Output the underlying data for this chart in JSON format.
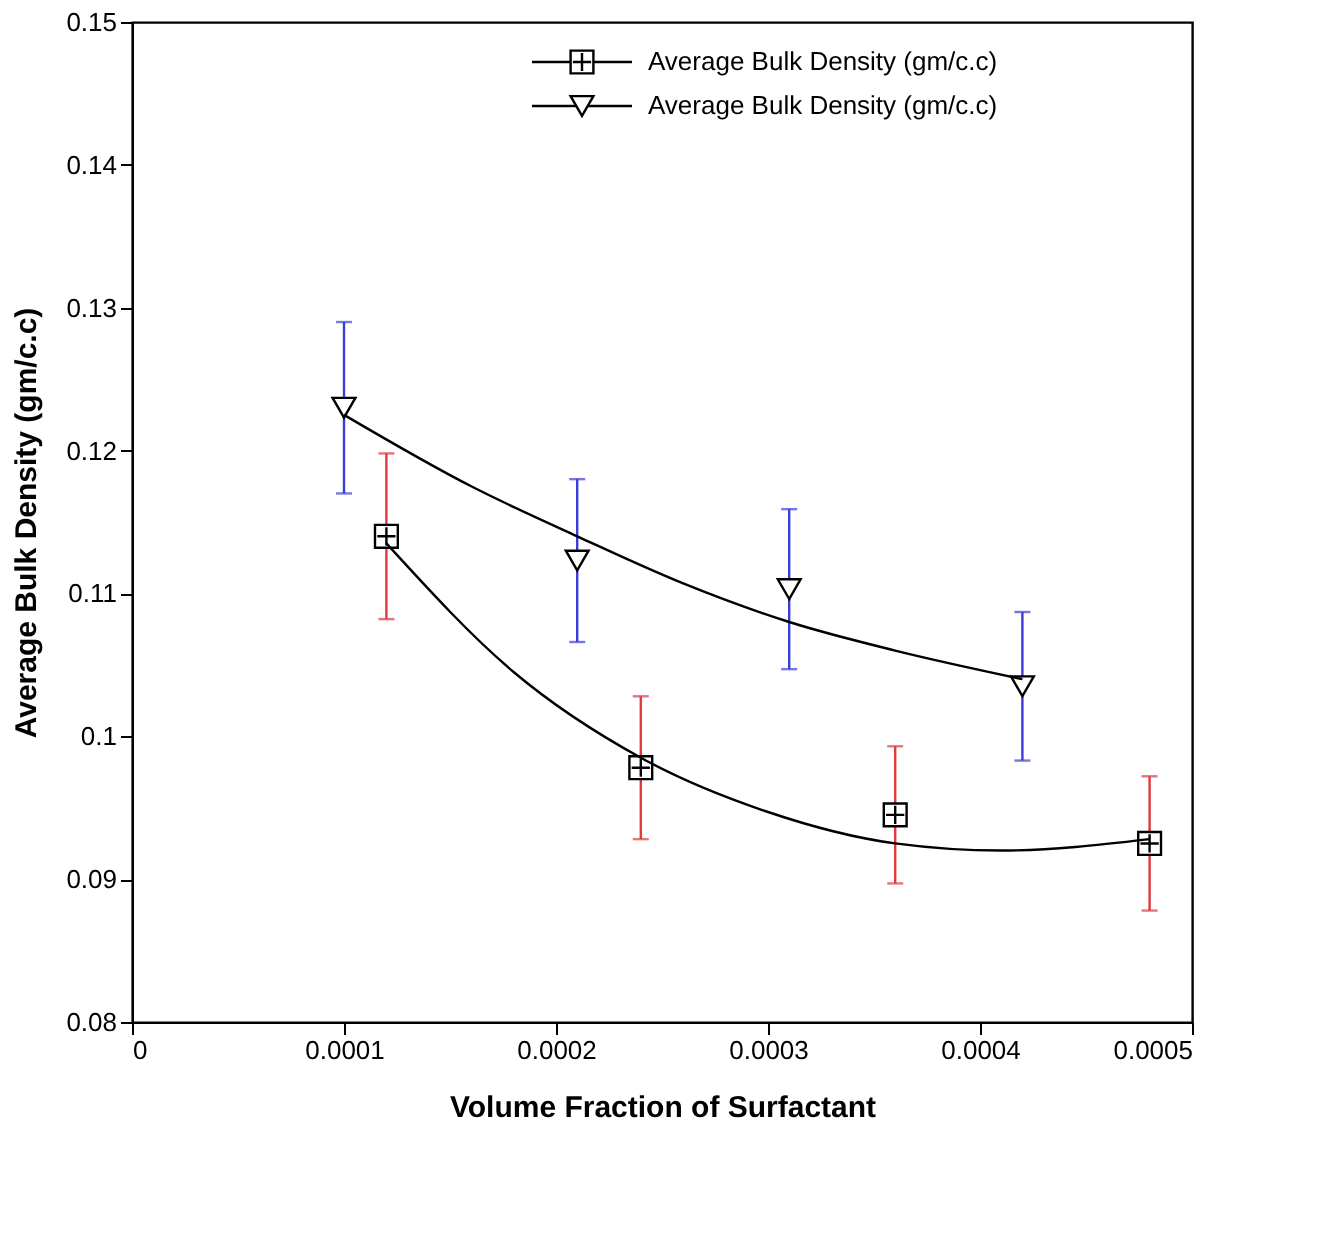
{
  "chart_data": {
    "type": "scatter",
    "xlabel": "Volume Fraction of Surfactant",
    "ylabel": "Average Bulk Density (gm/c.c)",
    "xlim": [
      0,
      0.0005
    ],
    "xticks": [
      0,
      0.0001,
      0.0002,
      0.0003,
      0.0004,
      0.0005
    ],
    "ylim": [
      0.08,
      0.15
    ],
    "yticks": [
      0.08,
      0.09,
      0.1,
      0.11,
      0.12,
      0.13,
      0.14,
      0.15
    ],
    "grid": false,
    "legend": "top right",
    "series": [
      {
        "name": "Average Bulk Density (gm/c.c)",
        "type": "scatter",
        "marker": "square",
        "color": "#000000",
        "x": [
          0.00012,
          0.00024,
          0.00036,
          0.00048
        ],
        "values": [
          0.114,
          0.0978,
          0.0945,
          0.0925
        ],
        "errors": [
          0.0058,
          0.005,
          0.0048,
          0.0047
        ]
      },
      {
        "name": "Average Bulk Density (gm/c.c)",
        "type": "scatter",
        "marker": "triangle",
        "color": "#000000",
        "x": [
          0.0001,
          0.00021,
          0.00031,
          0.00042
        ],
        "values": [
          0.123,
          0.1123,
          0.1103,
          0.1035
        ],
        "errors": [
          0.006,
          0.0057,
          0.0056,
          0.0052
        ]
      },
      {
        "type": "line",
        "color": "#000000",
        "x": [
          0.00012,
          0.00018,
          0.00024,
          0.0003,
          0.00036,
          0.00041,
          0.00048
        ],
        "values": [
          0.1135,
          0.1045,
          0.0985,
          0.0947,
          0.0925,
          0.092,
          0.0928
        ]
      },
      {
        "type": "line",
        "color": "#000000",
        "x": [
          0.0001,
          0.00016,
          0.00021,
          0.00026,
          0.00031,
          0.00036,
          0.00042
        ],
        "values": [
          0.1225,
          0.1175,
          0.114,
          0.1107,
          0.108,
          0.106,
          0.104
        ]
      }
    ]
  }
}
